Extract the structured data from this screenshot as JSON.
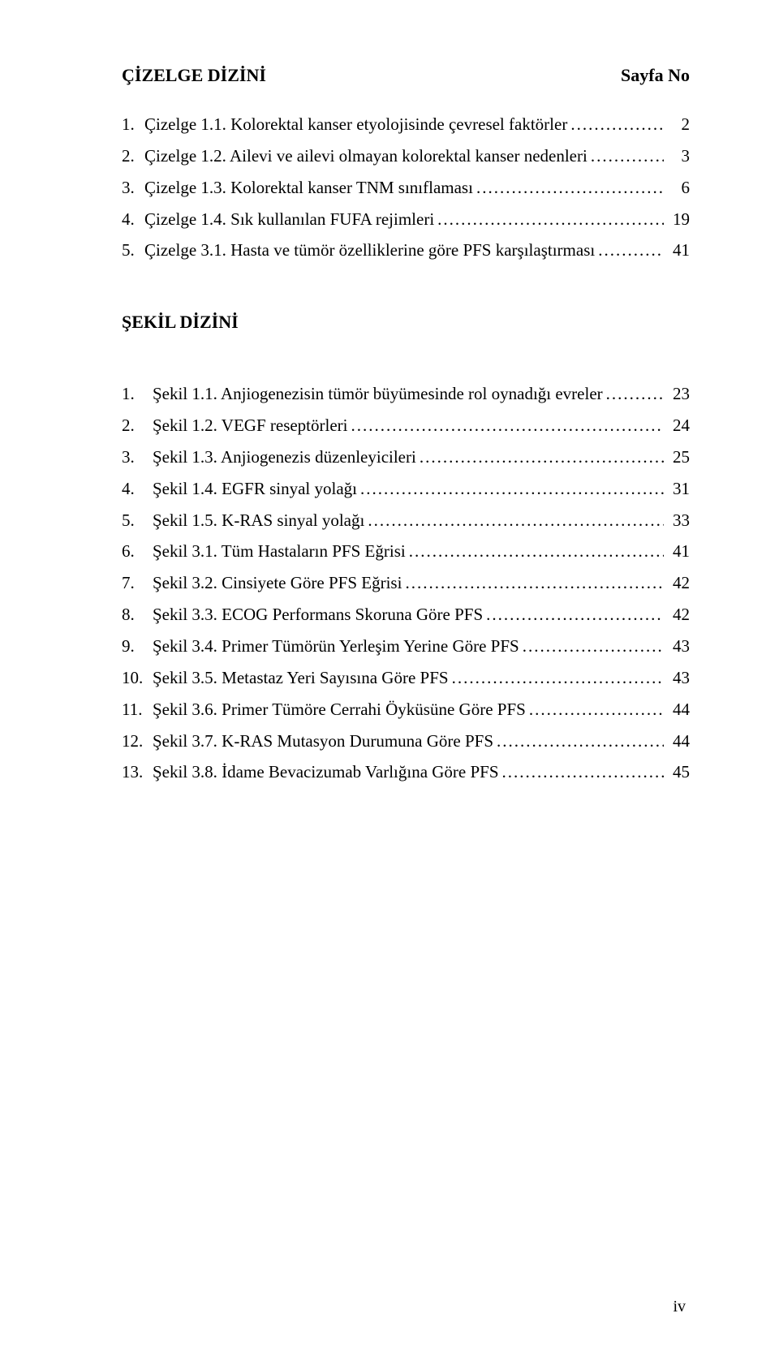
{
  "header": {
    "title": "ÇİZELGE DİZİNİ",
    "page_label": "Sayfa No"
  },
  "cizelge_list": [
    {
      "num": "1.",
      "label": "Çizelge 1.1. Kolorektal kanser etyolojisinde çevresel faktörler",
      "page": "2"
    },
    {
      "num": "2.",
      "label": "Çizelge 1.2. Ailevi ve ailevi olmayan kolorektal kanser nedenleri",
      "page": "3"
    },
    {
      "num": "3.",
      "label": "Çizelge 1.3. Kolorektal kanser TNM sınıflaması",
      "page": "6"
    },
    {
      "num": "4.",
      "label": "Çizelge 1.4. Sık kullanılan FUFA rejimleri",
      "page": "19"
    },
    {
      "num": "5.",
      "label": " Çizelge 3.1. Hasta ve tümör özelliklerine göre PFS karşılaştırması",
      "page": "41"
    }
  ],
  "sekil_title": "ŞEKİL DİZİNİ",
  "sekil_list": [
    {
      "num": "1.",
      "label": " Şekil 1.1. Anjiogenezisin tümör büyümesinde rol oynadığı evreler",
      "page": "23"
    },
    {
      "num": "2.",
      "label": " Şekil 1.2. VEGF reseptörleri",
      "page": "24"
    },
    {
      "num": "3.",
      "label": " Şekil 1.3. Anjiogenezis düzenleyicileri",
      "page": "25"
    },
    {
      "num": "4.",
      "label": " Şekil 1.4. EGFR sinyal yolağı",
      "page": "31"
    },
    {
      "num": "5.",
      "label": " Şekil 1.5. K-RAS sinyal yolağı",
      "page": "33"
    },
    {
      "num": "6.",
      "label": " Şekil 3.1. Tüm Hastaların PFS Eğrisi",
      "page": "41"
    },
    {
      "num": "7.",
      "label": " Şekil 3.2. Cinsiyete Göre PFS Eğrisi",
      "page": "42"
    },
    {
      "num": "8.",
      "label": " Şekil 3.3. ECOG Performans Skoruna Göre PFS",
      "page": "42"
    },
    {
      "num": "9.",
      "label": " Şekil 3.4. Primer Tümörün Yerleşim Yerine Göre PFS",
      "page": "43"
    },
    {
      "num": "10.",
      "label": "Şekil 3.5. Metastaz Yeri Sayısına Göre PFS",
      "page": "43"
    },
    {
      "num": "11.",
      "label": "Şekil 3.6. Primer Tümöre Cerrahi Öyküsüne Göre PFS",
      "page": "44"
    },
    {
      "num": "12.",
      "label": "Şekil 3.7. K-RAS Mutasyon Durumuna Göre PFS",
      "page": "44"
    },
    {
      "num": "13.",
      "label": " Şekil 3.8. İdame Bevacizumab Varlığına Göre PFS",
      "page": "45"
    }
  ],
  "page_number": "iv"
}
